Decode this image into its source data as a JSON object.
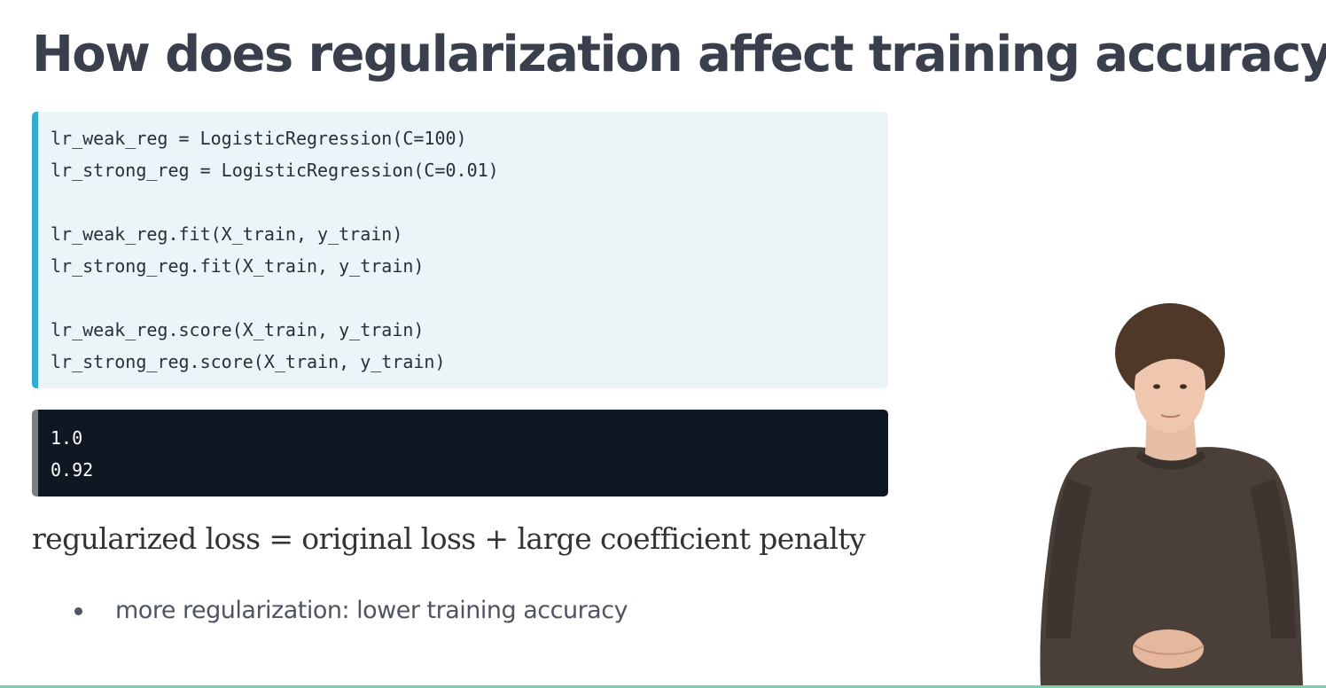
{
  "slide": {
    "title": "How does regularization affect training accuracy?"
  },
  "code": {
    "lines": [
      "lr_weak_reg = LogisticRegression(C=100)",
      "lr_strong_reg = LogisticRegression(C=0.01)",
      "",
      "lr_weak_reg.fit(X_train, y_train)",
      "lr_strong_reg.fit(X_train, y_train)",
      "",
      "lr_weak_reg.score(X_train, y_train)",
      "lr_strong_reg.score(X_train, y_train)"
    ]
  },
  "output": {
    "lines": [
      "1.0",
      "0.92"
    ]
  },
  "formula": {
    "text": "regularized loss = original loss + large coefficient penalty"
  },
  "bullets": [
    "more regularization: lower training accuracy"
  ],
  "colors": {
    "title": "#3a3f4d",
    "code_bg": "#ebf4f7",
    "code_accent": "#33acd0",
    "output_bg": "#0f1723",
    "output_accent": "#7a7f86",
    "bottom_rule": "#7fcfaf"
  }
}
